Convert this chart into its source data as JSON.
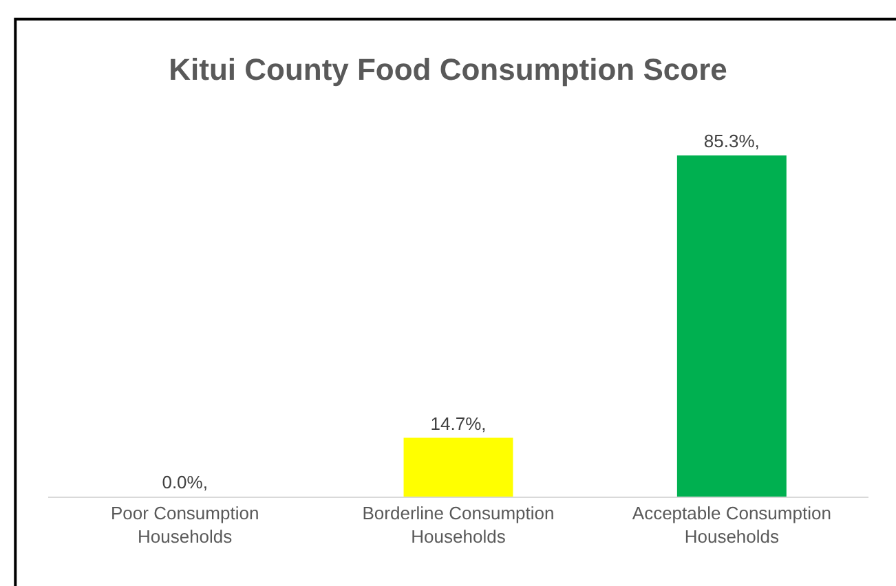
{
  "chart_data": {
    "type": "bar",
    "title": "Kitui County Food Consumption Score",
    "categories": [
      "Poor Consumption Households",
      "Borderline Consumption Households",
      "Acceptable Consumption Households"
    ],
    "values": [
      0.0,
      14.7,
      85.3
    ],
    "colors": [
      null,
      "#ffff00",
      "#00b050"
    ],
    "value_labels": [
      "0.0%,",
      "14.7%,",
      "85.3%,"
    ]
  }
}
